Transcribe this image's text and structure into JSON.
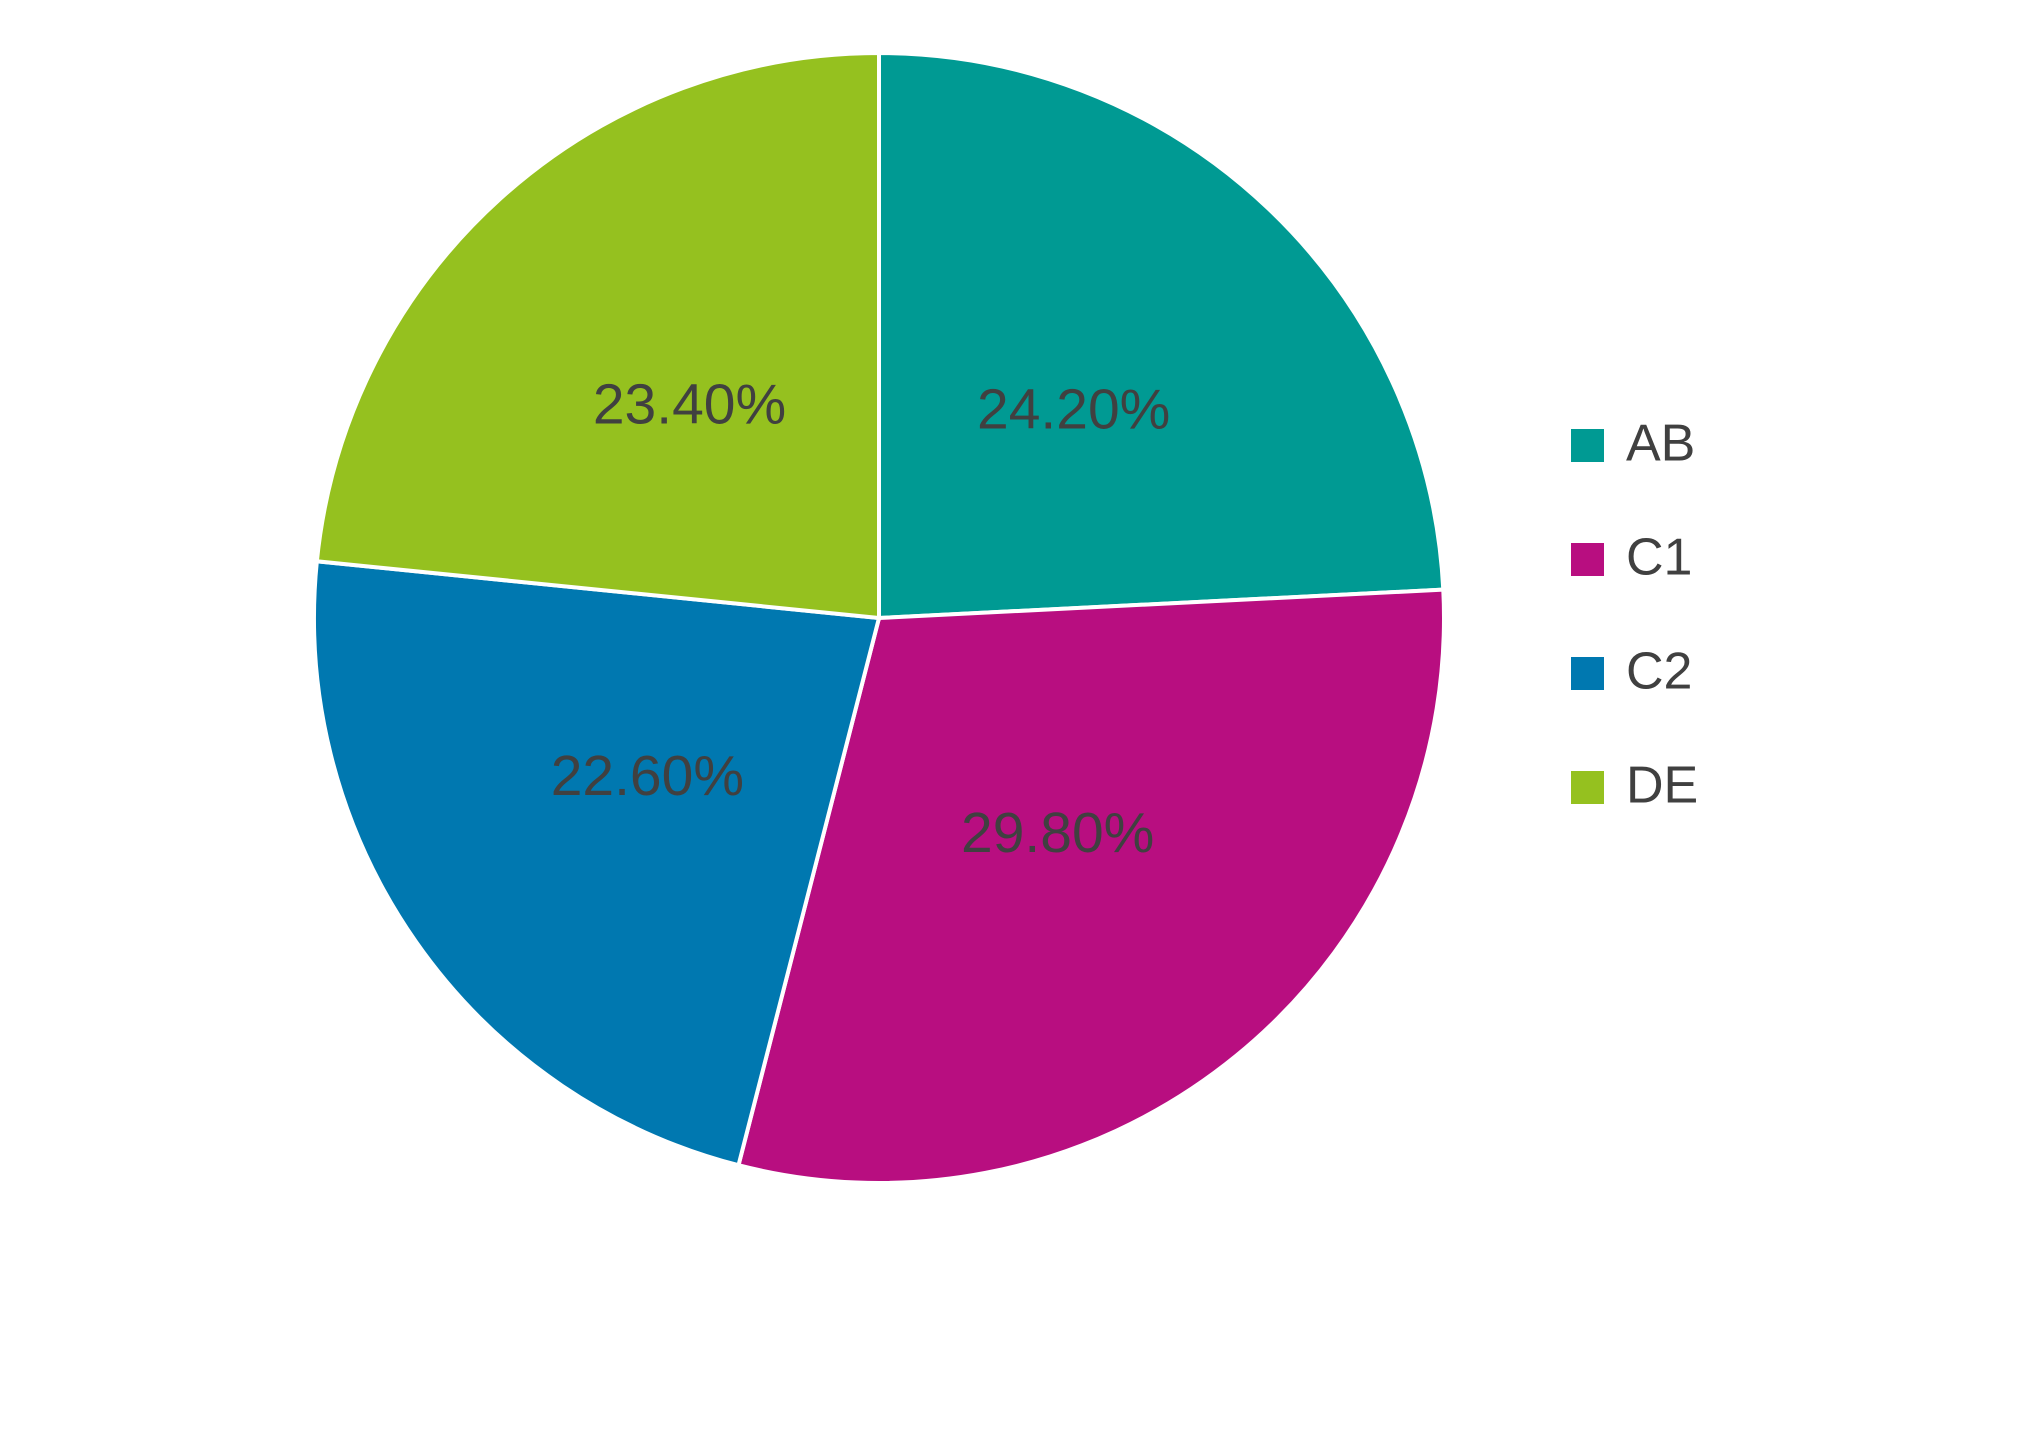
{
  "chart_data": {
    "type": "pie",
    "categories": [
      "AB",
      "C1",
      "C2",
      "DE"
    ],
    "values": [
      24.2,
      29.8,
      22.6,
      23.4
    ],
    "value_labels": [
      "24.20%",
      "29.80%",
      "22.60%",
      "23.40%"
    ],
    "colors": [
      "#009a93",
      "#b80e80",
      "#0078b0",
      "#95c11f"
    ],
    "legend": "right"
  }
}
